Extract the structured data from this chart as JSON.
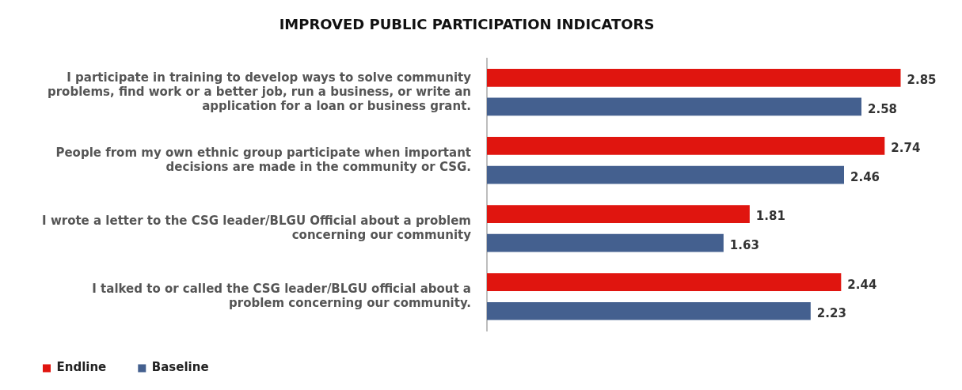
{
  "chart_data": {
    "type": "bar",
    "orientation": "horizontal",
    "title": "IMPROVED PUBLIC PARTICIPATION INDICATORS",
    "categories": [
      "I participate in training to develop ways to solve community problems, find work or a better job, run a business, or write an application for a loan or business grant.",
      "People from my own ethnic group participate when important decisions are made in the community or CSG.",
      "I wrote a letter to the CSG leader/BLGU Official about a problem concerning our community",
      "I talked to or called the CSG leader/BLGU official about a problem concerning our community."
    ],
    "series": [
      {
        "name": "Endline",
        "color": "#e0150f",
        "values": [
          2.85,
          2.74,
          1.81,
          2.44
        ]
      },
      {
        "name": "Baseline",
        "color": "#44608f",
        "values": [
          2.58,
          2.46,
          1.63,
          2.23
        ]
      }
    ],
    "tick_labels": "y",
    "grid": false,
    "legend": "bottom left",
    "data_labels": true
  }
}
